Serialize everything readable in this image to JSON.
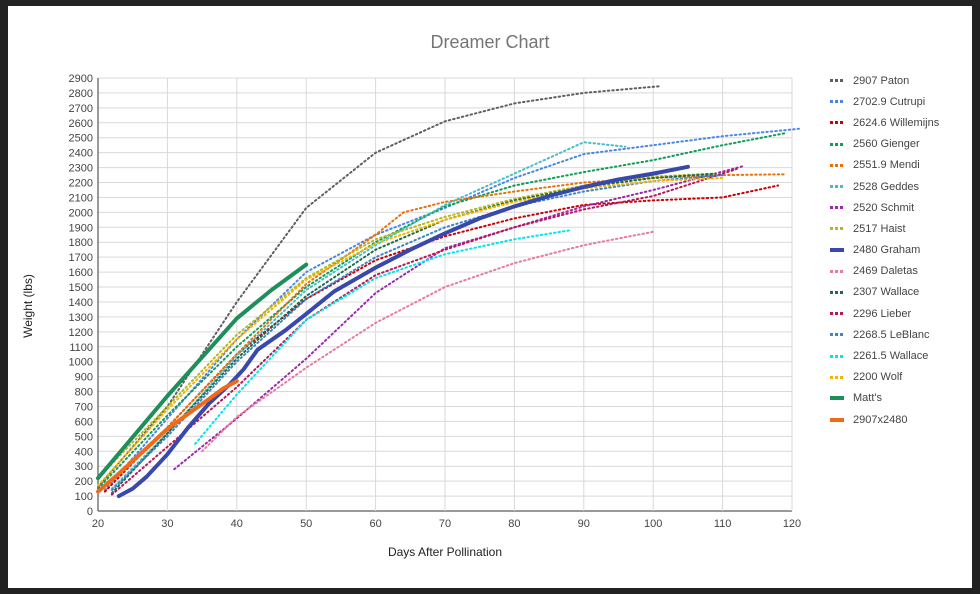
{
  "chart_data": {
    "type": "line",
    "title": "Dreamer Chart",
    "xlabel": "Days After Pollination",
    "ylabel": "Weight (lbs)",
    "xlim": [
      20,
      120
    ],
    "ylim": [
      0,
      2900
    ],
    "x_ticks": [
      20,
      30,
      40,
      50,
      60,
      70,
      80,
      90,
      100,
      110,
      120
    ],
    "y_ticks": [
      0,
      100,
      200,
      300,
      400,
      500,
      600,
      700,
      800,
      900,
      1000,
      1100,
      1200,
      1300,
      1400,
      1500,
      1600,
      1700,
      1800,
      1900,
      2000,
      2100,
      2200,
      2300,
      2400,
      2500,
      2600,
      2700,
      2800,
      2900
    ],
    "grid": true,
    "legend_position": "right",
    "series": [
      {
        "name": "2907 Paton",
        "color": "#5f5f5f",
        "style": "dotted",
        "x": [
          20,
          30,
          40,
          50,
          60,
          70,
          80,
          90,
          101
        ],
        "y": [
          160,
          700,
          1400,
          2030,
          2400,
          2610,
          2730,
          2800,
          2845
        ]
      },
      {
        "name": "2702.9 Cutrupi",
        "color": "#4a86e8",
        "style": "dotted",
        "x": [
          21,
          30,
          40,
          50,
          60,
          70,
          80,
          90,
          100,
          110,
          121
        ],
        "y": [
          140,
          620,
          1150,
          1600,
          1850,
          2030,
          2230,
          2390,
          2450,
          2510,
          2560
        ]
      },
      {
        "name": "2624.6 Willemijns",
        "color": "#cc0000",
        "style": "dotted",
        "x": [
          21,
          30,
          40,
          50,
          60,
          70,
          80,
          90,
          100,
          110,
          118
        ],
        "y": [
          130,
          560,
          1050,
          1420,
          1680,
          1840,
          1960,
          2050,
          2080,
          2100,
          2180
        ]
      },
      {
        "name": "2560 Gienger",
        "color": "#0f9d58",
        "style": "dotted",
        "x": [
          20,
          30,
          40,
          50,
          60,
          70,
          80,
          90,
          100,
          110,
          119
        ],
        "y": [
          150,
          640,
          1100,
          1500,
          1800,
          2040,
          2180,
          2270,
          2350,
          2450,
          2530
        ]
      },
      {
        "name": "2551.9 Mendi",
        "color": "#e8710a",
        "style": "dotted",
        "x": [
          20,
          30,
          40,
          50,
          60,
          64,
          70,
          80,
          90,
          100,
          110,
          119
        ],
        "y": [
          130,
          560,
          1050,
          1520,
          1850,
          2000,
          2070,
          2140,
          2200,
          2230,
          2250,
          2255
        ]
      },
      {
        "name": "2528 Geddes",
        "color": "#46bdc6",
        "style": "dotted",
        "x": [
          22,
          30,
          40,
          50,
          60,
          70,
          80,
          90,
          96
        ],
        "y": [
          150,
          520,
          1040,
          1480,
          1780,
          2050,
          2260,
          2470,
          2440
        ]
      },
      {
        "name": "2520 Schmit",
        "color": "#9c27b0",
        "style": "dotted",
        "x": [
          31,
          40,
          50,
          60,
          70,
          80,
          90,
          100,
          113
        ],
        "y": [
          280,
          620,
          1020,
          1460,
          1760,
          1900,
          2040,
          2150,
          2310
        ]
      },
      {
        "name": "2517 Haist",
        "color": "#b5b820",
        "style": "dotted",
        "x": [
          20,
          30,
          40,
          50,
          60,
          70,
          80,
          90,
          100,
          109
        ],
        "y": [
          220,
          700,
          1180,
          1560,
          1820,
          1970,
          2090,
          2180,
          2240,
          2260
        ]
      },
      {
        "name": "2480 Graham",
        "color": "#3949ab",
        "style": "solid",
        "x": [
          23,
          25,
          27,
          30,
          33,
          36,
          39,
          41,
          43,
          47,
          50,
          54,
          60,
          65,
          70,
          75,
          80,
          85,
          90,
          95,
          100,
          105
        ],
        "y": [
          100,
          150,
          230,
          380,
          560,
          720,
          850,
          950,
          1080,
          1210,
          1320,
          1470,
          1630,
          1750,
          1860,
          1960,
          2040,
          2110,
          2170,
          2220,
          2260,
          2305
        ]
      },
      {
        "name": "2469 Daletas",
        "color": "#e67c9b",
        "style": "dotted",
        "x": [
          35,
          40,
          50,
          60,
          70,
          80,
          90,
          100
        ],
        "y": [
          400,
          630,
          960,
          1260,
          1500,
          1660,
          1780,
          1870
        ]
      },
      {
        "name": "2307 Wallace",
        "color": "#1e6b45",
        "style": "dotted",
        "x": [
          22,
          30,
          40,
          50,
          60,
          70,
          80,
          90,
          100,
          109
        ],
        "y": [
          120,
          520,
          1020,
          1440,
          1750,
          1950,
          2080,
          2170,
          2230,
          2260
        ]
      },
      {
        "name": "2296 Lieber",
        "color": "#b8175a",
        "style": "dotted",
        "x": [
          22,
          30,
          40,
          50,
          60,
          70,
          80,
          90,
          100,
          112
        ],
        "y": [
          110,
          430,
          830,
          1280,
          1580,
          1750,
          1900,
          2020,
          2110,
          2290
        ]
      },
      {
        "name": "2268.5 LeBlanc",
        "color": "#3d85c6",
        "style": "dotted",
        "x": [
          22,
          30,
          40,
          50,
          60,
          70,
          80,
          90,
          100,
          110
        ],
        "y": [
          140,
          500,
          1000,
          1420,
          1700,
          1900,
          2040,
          2140,
          2210,
          2250
        ]
      },
      {
        "name": "2261.5 Wallace",
        "color": "#00e5ee",
        "style": "dotted",
        "x": [
          34,
          40,
          50,
          60,
          70,
          80,
          88
        ],
        "y": [
          450,
          780,
          1280,
          1560,
          1720,
          1820,
          1880
        ]
      },
      {
        "name": "2200 Wolf",
        "color": "#f4b400",
        "style": "dotted",
        "x": [
          20,
          30,
          40,
          50,
          60,
          70,
          80,
          90,
          100,
          110
        ],
        "y": [
          170,
          680,
          1150,
          1550,
          1790,
          1950,
          2070,
          2160,
          2210,
          2230
        ]
      },
      {
        "name": "Matt's",
        "color": "#1e8e5a",
        "style": "solid",
        "x": [
          20,
          30,
          40,
          45,
          50
        ],
        "y": [
          220,
          770,
          1290,
          1480,
          1650
        ]
      },
      {
        "name": "2907x2480",
        "color": "#f06a1b",
        "style": "solid",
        "x": [
          20,
          23,
          27,
          30,
          33,
          36,
          38,
          40
        ],
        "y": [
          130,
          250,
          420,
          550,
          650,
          750,
          820,
          870
        ]
      }
    ]
  }
}
